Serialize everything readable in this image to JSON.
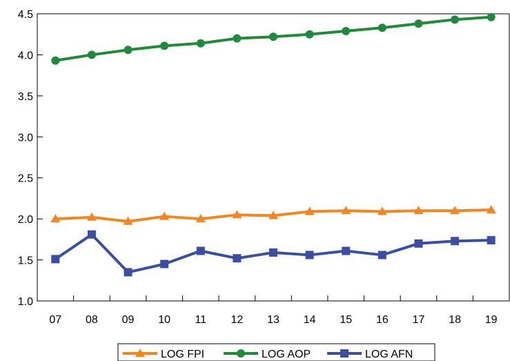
{
  "chart_data": {
    "type": "line",
    "title": "",
    "xlabel": "",
    "ylabel": "",
    "categories": [
      "07",
      "08",
      "09",
      "10",
      "11",
      "12",
      "13",
      "14",
      "15",
      "16",
      "17",
      "18",
      "19"
    ],
    "ylim": [
      1.0,
      4.5
    ],
    "yticks": [
      "1.0",
      "1.5",
      "2.0",
      "2.5",
      "3.0",
      "3.5",
      "4.0",
      "4.5"
    ],
    "grid": false,
    "legend_position": "bottom-center",
    "series": [
      {
        "name": "LOG FPI",
        "color": "#f5861f",
        "marker": "triangle",
        "values": [
          2.0,
          2.02,
          1.97,
          2.03,
          2.0,
          2.05,
          2.04,
          2.09,
          2.1,
          2.09,
          2.1,
          2.1,
          2.11
        ]
      },
      {
        "name": "LOG AOP",
        "color": "#1f8a3a",
        "marker": "circle",
        "values": [
          3.93,
          4.0,
          4.06,
          4.11,
          4.14,
          4.2,
          4.22,
          4.25,
          4.29,
          4.33,
          4.38,
          4.43,
          4.46
        ]
      },
      {
        "name": "LOG AFN",
        "color": "#3a4ea3",
        "marker": "square",
        "values": [
          1.51,
          1.81,
          1.35,
          1.45,
          1.61,
          1.52,
          1.59,
          1.56,
          1.61,
          1.56,
          1.7,
          1.73,
          1.74
        ]
      }
    ]
  }
}
